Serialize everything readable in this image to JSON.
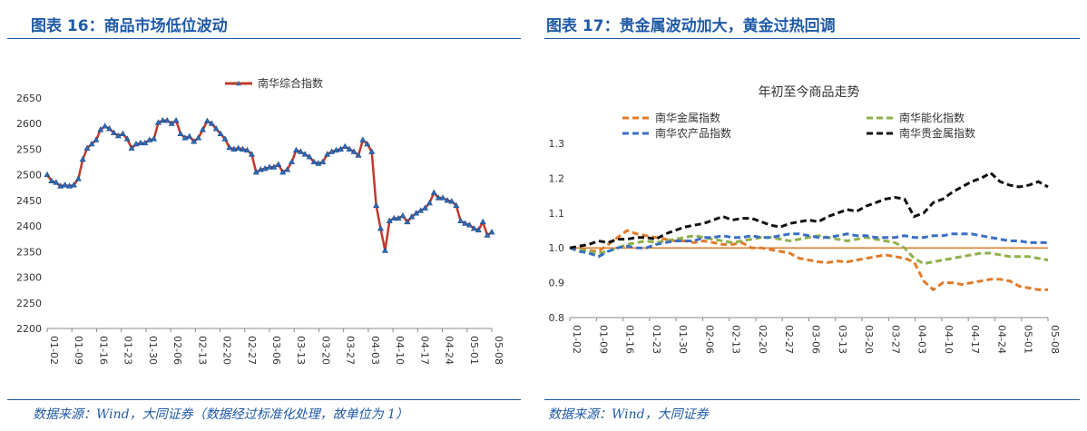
{
  "left_panel": {
    "title": "图表 16：商品市场低位波动",
    "source": "数据来源：Wind，大同证券（数据经过标准化处理，故单位为 1）"
  },
  "right_panel": {
    "title": "图表 17：贵金属波动加大，黄金过热回调",
    "source": "数据来源：Wind，大同证券"
  },
  "chart_data": [
    {
      "type": "line",
      "title": "",
      "legend_position": "top",
      "grid": false,
      "xlabel": "",
      "ylabel": "",
      "ylim": [
        2200,
        2650
      ],
      "yticks": [
        2200,
        2250,
        2300,
        2350,
        2400,
        2450,
        2500,
        2550,
        2600,
        2650
      ],
      "xtick_labels": [
        "01-02",
        "01-09",
        "01-16",
        "01-23",
        "01-30",
        "02-06",
        "02-13",
        "02-20",
        "02-27",
        "03-06",
        "03-13",
        "03-20",
        "03-27",
        "04-03",
        "04-10",
        "04-17",
        "04-24",
        "05-01",
        "05-08"
      ],
      "series": [
        {
          "name": "南华综合指数",
          "color": "#c0392b",
          "marker_color": "#2e6bb5",
          "values": [
            2500,
            2488,
            2485,
            2478,
            2480,
            2478,
            2480,
            2492,
            2530,
            2552,
            2560,
            2568,
            2588,
            2595,
            2590,
            2582,
            2576,
            2580,
            2570,
            2552,
            2560,
            2562,
            2562,
            2568,
            2570,
            2602,
            2606,
            2606,
            2600,
            2606,
            2580,
            2572,
            2575,
            2565,
            2572,
            2588,
            2605,
            2600,
            2590,
            2580,
            2570,
            2553,
            2550,
            2552,
            2550,
            2548,
            2540,
            2505,
            2510,
            2512,
            2515,
            2515,
            2520,
            2505,
            2510,
            2525,
            2548,
            2545,
            2540,
            2535,
            2525,
            2522,
            2525,
            2540,
            2545,
            2548,
            2550,
            2555,
            2550,
            2545,
            2538,
            2568,
            2560,
            2545,
            2440,
            2395,
            2352,
            2410,
            2415,
            2415,
            2420,
            2408,
            2418,
            2425,
            2430,
            2435,
            2445,
            2465,
            2455,
            2455,
            2450,
            2448,
            2440,
            2410,
            2405,
            2402,
            2395,
            2392,
            2408,
            2382,
            2388
          ]
        }
      ]
    },
    {
      "type": "line",
      "title": "年初至今商品走势",
      "legend_position": "top",
      "grid": false,
      "xlabel": "",
      "ylabel": "",
      "ylim": [
        0.8,
        1.3
      ],
      "yticks": [
        0.8,
        0.9,
        1.0,
        1.1,
        1.2,
        1.3
      ],
      "reference_line": {
        "value": 1.0,
        "color": "#e07b2a"
      },
      "xtick_labels": [
        "01-02",
        "01-09",
        "01-16",
        "01-23",
        "01-30",
        "02-06",
        "02-13",
        "02-20",
        "02-27",
        "03-06",
        "03-13",
        "03-20",
        "03-27",
        "04-03",
        "04-10",
        "04-17",
        "04-24",
        "05-01",
        "05-08"
      ],
      "series": [
        {
          "name": "南华金属指数",
          "color": "#e07b2a",
          "values": [
            1.0,
            0.995,
            0.993,
            0.99,
            1.01,
            1.03,
            1.05,
            1.04,
            1.035,
            1.03,
            1.025,
            1.02,
            1.02,
            1.015,
            1.02,
            1.015,
            1.01,
            1.01,
            1.015,
            1.0,
            1.0,
            0.995,
            0.99,
            0.985,
            0.97,
            0.965,
            0.96,
            0.958,
            0.962,
            0.96,
            0.965,
            0.97,
            0.975,
            0.98,
            0.975,
            0.97,
            0.96,
            0.905,
            0.88,
            0.9,
            0.9,
            0.895,
            0.9,
            0.905,
            0.91,
            0.91,
            0.905,
            0.89,
            0.885,
            0.88,
            0.88
          ]
        },
        {
          "name": "南华能化指数",
          "color": "#8fb04a",
          "values": [
            1.0,
            0.995,
            0.99,
            0.985,
            0.99,
            1.0,
            1.01,
            1.015,
            1.02,
            1.015,
            1.02,
            1.025,
            1.03,
            1.035,
            1.03,
            1.025,
            1.02,
            1.015,
            1.02,
            1.025,
            1.03,
            1.03,
            1.025,
            1.02,
            1.025,
            1.03,
            1.035,
            1.03,
            1.025,
            1.02,
            1.025,
            1.03,
            1.025,
            1.02,
            1.015,
            1.0,
            0.97,
            0.955,
            0.96,
            0.965,
            0.97,
            0.975,
            0.98,
            0.985,
            0.985,
            0.98,
            0.975,
            0.975,
            0.975,
            0.97,
            0.965
          ]
        },
        {
          "name": "南华农产品指数",
          "color": "#3a6fc4",
          "values": [
            1.0,
            0.99,
            0.985,
            0.975,
            0.99,
            1.0,
            1.005,
            1.0,
            1.0,
            1.01,
            1.015,
            1.02,
            1.02,
            1.02,
            1.03,
            1.03,
            1.035,
            1.03,
            1.03,
            1.035,
            1.03,
            1.03,
            1.035,
            1.04,
            1.04,
            1.035,
            1.03,
            1.03,
            1.035,
            1.04,
            1.035,
            1.035,
            1.03,
            1.03,
            1.03,
            1.035,
            1.03,
            1.03,
            1.035,
            1.035,
            1.04,
            1.04,
            1.04,
            1.035,
            1.03,
            1.025,
            1.02,
            1.02,
            1.015,
            1.015,
            1.015
          ]
        },
        {
          "name": "南华贵金属指数",
          "color": "#111111",
          "values": [
            1.0,
            1.005,
            1.01,
            1.02,
            1.015,
            1.025,
            1.025,
            1.03,
            1.03,
            1.025,
            1.04,
            1.05,
            1.06,
            1.065,
            1.07,
            1.08,
            1.09,
            1.08,
            1.085,
            1.085,
            1.075,
            1.065,
            1.06,
            1.07,
            1.075,
            1.08,
            1.075,
            1.09,
            1.1,
            1.11,
            1.105,
            1.12,
            1.13,
            1.14,
            1.145,
            1.14,
            1.09,
            1.1,
            1.13,
            1.14,
            1.16,
            1.175,
            1.19,
            1.2,
            1.215,
            1.19,
            1.18,
            1.175,
            1.18,
            1.19,
            1.175
          ]
        }
      ]
    }
  ]
}
